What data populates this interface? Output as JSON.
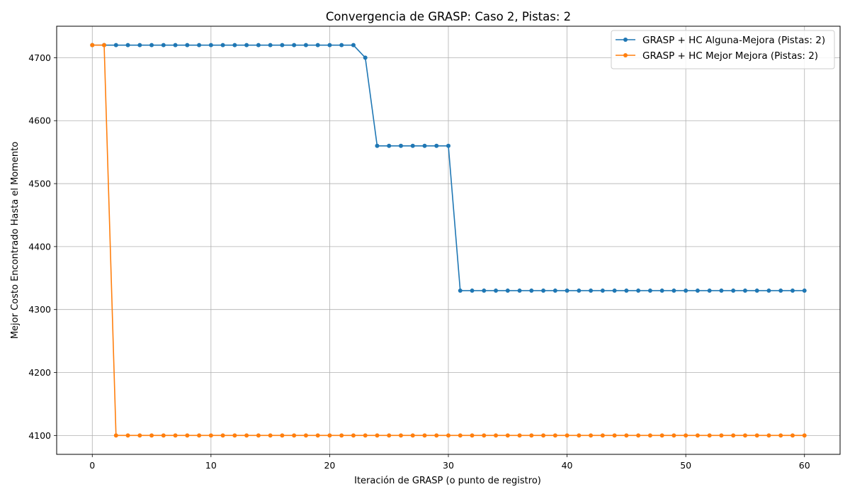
{
  "chart_data": {
    "type": "line",
    "title": "Convergencia de GRASP: Caso 2, Pistas: 2",
    "xlabel": "Iteración de GRASP (o punto de registro)",
    "ylabel": "Mejor Costo Encontrado Hasta el Momento",
    "xlim": [
      -3,
      63
    ],
    "ylim": [
      4070,
      4750
    ],
    "xticks": [
      0,
      10,
      20,
      30,
      40,
      50,
      60
    ],
    "yticks": [
      4100,
      4200,
      4300,
      4400,
      4500,
      4600,
      4700
    ],
    "grid": true,
    "legend_position": "top-right",
    "x": [
      0,
      1,
      2,
      3,
      4,
      5,
      6,
      7,
      8,
      9,
      10,
      11,
      12,
      13,
      14,
      15,
      16,
      17,
      18,
      19,
      20,
      21,
      22,
      23,
      24,
      25,
      26,
      27,
      28,
      29,
      30,
      31,
      32,
      33,
      34,
      35,
      36,
      37,
      38,
      39,
      40,
      41,
      42,
      43,
      44,
      45,
      46,
      47,
      48,
      49,
      50,
      51,
      52,
      53,
      54,
      55,
      56,
      57,
      58,
      59,
      60
    ],
    "series": [
      {
        "name": "GRASP + HC Alguna-Mejora (Pistas: 2)",
        "color": "#1f77b4",
        "values": [
          4720,
          4720,
          4720,
          4720,
          4720,
          4720,
          4720,
          4720,
          4720,
          4720,
          4720,
          4720,
          4720,
          4720,
          4720,
          4720,
          4720,
          4720,
          4720,
          4720,
          4720,
          4720,
          4720,
          4700,
          4560,
          4560,
          4560,
          4560,
          4560,
          4560,
          4560,
          4330,
          4330,
          4330,
          4330,
          4330,
          4330,
          4330,
          4330,
          4330,
          4330,
          4330,
          4330,
          4330,
          4330,
          4330,
          4330,
          4330,
          4330,
          4330,
          4330,
          4330,
          4330,
          4330,
          4330,
          4330,
          4330,
          4330,
          4330,
          4330,
          4330
        ]
      },
      {
        "name": "GRASP + HC Mejor Mejora (Pistas: 2)",
        "color": "#ff7f0e",
        "values": [
          4720,
          4720,
          4100,
          4100,
          4100,
          4100,
          4100,
          4100,
          4100,
          4100,
          4100,
          4100,
          4100,
          4100,
          4100,
          4100,
          4100,
          4100,
          4100,
          4100,
          4100,
          4100,
          4100,
          4100,
          4100,
          4100,
          4100,
          4100,
          4100,
          4100,
          4100,
          4100,
          4100,
          4100,
          4100,
          4100,
          4100,
          4100,
          4100,
          4100,
          4100,
          4100,
          4100,
          4100,
          4100,
          4100,
          4100,
          4100,
          4100,
          4100,
          4100,
          4100,
          4100,
          4100,
          4100,
          4100,
          4100,
          4100,
          4100,
          4100,
          4100
        ]
      }
    ]
  }
}
